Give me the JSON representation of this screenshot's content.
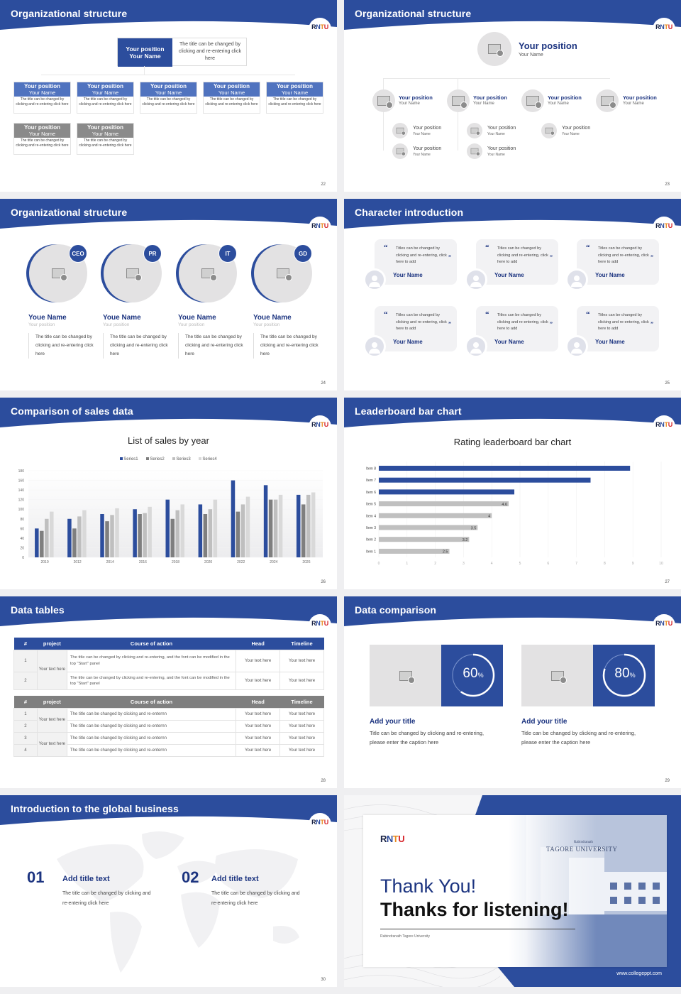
{
  "colors": {
    "brand_blue": "#2c4d9d",
    "navy_text": "#1c3480",
    "gray_bar": "#c0c0c0",
    "gap_bg": "#efeff1"
  },
  "logo": {
    "r": "R",
    "n": "N",
    "t": "T",
    "u": "U"
  },
  "slides": {
    "s22": {
      "title": "Organizational structure",
      "page": "22",
      "top": {
        "position": "Your position",
        "name": "Your Name",
        "desc": "The title can be changed by clicking and re-entering click here"
      },
      "row1": [
        {
          "position": "Your position",
          "name": "Your Name",
          "desc": "The title can be changed by clicking and re-entering click here"
        },
        {
          "position": "Your position",
          "name": "Your Name",
          "desc": "The title can be changed by clicking and re-entering click here"
        },
        {
          "position": "Your position",
          "name": "Your Name",
          "desc": "The title can be changed by clicking and re-entering click here"
        },
        {
          "position": "Your position",
          "name": "Your Name",
          "desc": "The title can be changed by clicking and re-entering click here"
        },
        {
          "position": "Your position",
          "name": "Your Name",
          "desc": "The title can be changed by clicking and re-entering click here"
        }
      ],
      "row2": [
        {
          "position": "Your position",
          "name": "Your Name",
          "desc": "The title can be changed by clicking and re-entering click here"
        },
        {
          "position": "Your position",
          "name": "Your Name",
          "desc": "The title can be changed by clicking and re-entering click here"
        }
      ]
    },
    "s23": {
      "title": "Organizational structure",
      "page": "23",
      "top": {
        "position": "Your position",
        "name": "Your Name"
      },
      "level2": [
        {
          "position": "Your position",
          "name": "Your Name"
        },
        {
          "position": "Your position",
          "name": "Your Name"
        },
        {
          "position": "Your position",
          "name": "Your Name"
        },
        {
          "position": "Your position",
          "name": "Your Name"
        }
      ],
      "level3": [
        {
          "position": "Your position",
          "name": "Your Name"
        },
        {
          "position": "Your position",
          "name": "Your Name"
        },
        {
          "position": "Your position",
          "name": "Your Name"
        },
        {
          "position": "Your position",
          "name": "Your Name"
        },
        {
          "position": "Your position",
          "name": "Your Name"
        }
      ]
    },
    "s24": {
      "title": "Organizational structure",
      "page": "24",
      "people": [
        {
          "tag": "CEO",
          "name": "Youe Name",
          "position": "Your position",
          "desc": "The title can be changed by clicking and re-entering click here"
        },
        {
          "tag": "PR",
          "name": "Youe Name",
          "position": "Your position",
          "desc": "The title can be changed by clicking and re-entering click here"
        },
        {
          "tag": "IT",
          "name": "Youe Name",
          "position": "Your position",
          "desc": "The title can be changed by clicking and re-entering click here"
        },
        {
          "tag": "GD",
          "name": "Youe Name",
          "position": "Your position",
          "desc": "The title can be changed by clicking and re-entering click here"
        }
      ]
    },
    "s25": {
      "title": "Character introduction",
      "page": "25",
      "cards": [
        {
          "text": "Titles can be changed by clicking and re-entering, click here to add",
          "name": "Your Name"
        },
        {
          "text": "Titles can be changed by clicking and re-entering, click here to add",
          "name": "Your Name"
        },
        {
          "text": "Titles can be changed by clicking and re-entering, click here to add",
          "name": "Your Name"
        },
        {
          "text": "Titles can be changed by clicking and re-entering, click here to add",
          "name": "Your Name"
        },
        {
          "text": "Titles can be changed by clicking and re-entering, click here to add",
          "name": "Your Name"
        },
        {
          "text": "Titles can be changed by clicking and re-entering, click here to add",
          "name": "Your Name"
        }
      ],
      "open_quote": "“",
      "close_quote": "”"
    },
    "s26": {
      "title": "Comparison of sales data",
      "page": "26"
    },
    "s27": {
      "title": "Leaderboard bar chart",
      "page": "27"
    },
    "s28": {
      "title": "Data tables",
      "page": "28",
      "table1": {
        "headers": [
          "#",
          "project",
          "Course of action",
          "Head",
          "Timeline"
        ],
        "project": "Your text here",
        "rows": [
          {
            "num": "1",
            "action": "The title can be changed by clicking and re-entering, and the font can be modified in the top \"Start\" panel",
            "head": "Your text here",
            "timeline": "Your text here"
          },
          {
            "num": "2",
            "action": "The title can be changed by clicking and re-entering, and the font can be modified in the top \"Start\" panel",
            "head": "Your text here",
            "timeline": "Your text here"
          }
        ]
      },
      "table2": {
        "headers": [
          "#",
          "project",
          "Course of action",
          "Head",
          "Timeline"
        ],
        "project_a": "Your text here",
        "project_b": "Your text here",
        "rows": [
          {
            "num": "1",
            "action": "The title can be changed by clicking and re-enternn",
            "head": "Your text here",
            "timeline": "Your text here"
          },
          {
            "num": "2",
            "action": "The title can be changed by clicking and re-enternn",
            "head": "Your text here",
            "timeline": "Your text here"
          },
          {
            "num": "3",
            "action": "The title can be changed by clicking and re-enternn",
            "head": "Your text here",
            "timeline": "Your text here"
          },
          {
            "num": "4",
            "action": "The title can be changed by clicking and re-enternn",
            "head": "Your text here",
            "timeline": "Your text here"
          }
        ]
      }
    },
    "s29": {
      "title": "Data comparison",
      "page": "29",
      "items": [
        {
          "value": "60",
          "unit": "%",
          "percent": 60,
          "title": "Add your title",
          "caption": "Title can be changed by clicking and re-entering, please enter the caption here"
        },
        {
          "value": "80",
          "unit": "%",
          "percent": 80,
          "title": "Add your title",
          "caption": "Title can be changed by clicking and re-entering, please enter the caption here"
        }
      ]
    },
    "s30": {
      "title": "Introduction to the global business",
      "page": "30",
      "items": [
        {
          "num": "01",
          "title": "Add title text",
          "desc": "The title can be changed by clicking and re-entering click here"
        },
        {
          "num": "02",
          "title": "Add title text",
          "desc": "The title can be changed by clicking and re-entering click here"
        }
      ]
    },
    "s31": {
      "thank": "Thank You!",
      "thanks": "Thanks for listening!",
      "university": "Rabindranath Tagore University",
      "building_sign_small": "Rabindranath",
      "building_sign": "TAGORE UNIVERSITY",
      "website": "www.collegeppt.com"
    }
  },
  "chart_data": [
    {
      "type": "bar",
      "title": "List of sales by year",
      "categories": [
        "2010",
        "2012",
        "2014",
        "2016",
        "2018",
        "2020",
        "2022",
        "2024",
        "2026"
      ],
      "series": [
        {
          "name": "Series1",
          "color": "#2c4d9d",
          "values": [
            60,
            80,
            90,
            100,
            120,
            110,
            160,
            150,
            130
          ]
        },
        {
          "name": "Series2",
          "color": "#7f7f7f",
          "values": [
            55,
            60,
            75,
            90,
            80,
            90,
            95,
            120,
            110
          ]
        },
        {
          "name": "Series3",
          "color": "#bfbfbf",
          "values": [
            80,
            85,
            88,
            92,
            98,
            100,
            110,
            120,
            130
          ]
        },
        {
          "name": "Series4",
          "color": "#d9d9d9",
          "values": [
            95,
            98,
            102,
            105,
            110,
            120,
            126,
            130,
            135
          ]
        }
      ],
      "xlabel": "",
      "ylabel": "",
      "ylim": [
        0,
        180
      ],
      "yticks": [
        "0",
        "20",
        "40",
        "60",
        "80",
        "100",
        "120",
        "140",
        "160",
        "180"
      ],
      "legend_position": "top",
      "grid": true
    },
    {
      "type": "bar",
      "orientation": "horizontal",
      "title": "Rating leaderboard bar chart",
      "categories": [
        "Item 8",
        "Item 7",
        "Item 6",
        "Item 5",
        "Item 4",
        "Item 3",
        "Item 2",
        "Item 1"
      ],
      "values": [
        8.9,
        7.5,
        4.8,
        4.6,
        4,
        3.5,
        3.2,
        2.5
      ],
      "data_labels": [
        "",
        "",
        "",
        "4.6",
        "4",
        "3.5",
        "3.2",
        "2.5"
      ],
      "highlight_color": "#2c4d9d",
      "base_color": "#c0c0c0",
      "xlim": [
        0,
        10
      ],
      "xticks": [
        "0",
        "1",
        "2",
        "3",
        "4",
        "5",
        "6",
        "7",
        "8",
        "9",
        "10"
      ],
      "grid": true
    }
  ]
}
